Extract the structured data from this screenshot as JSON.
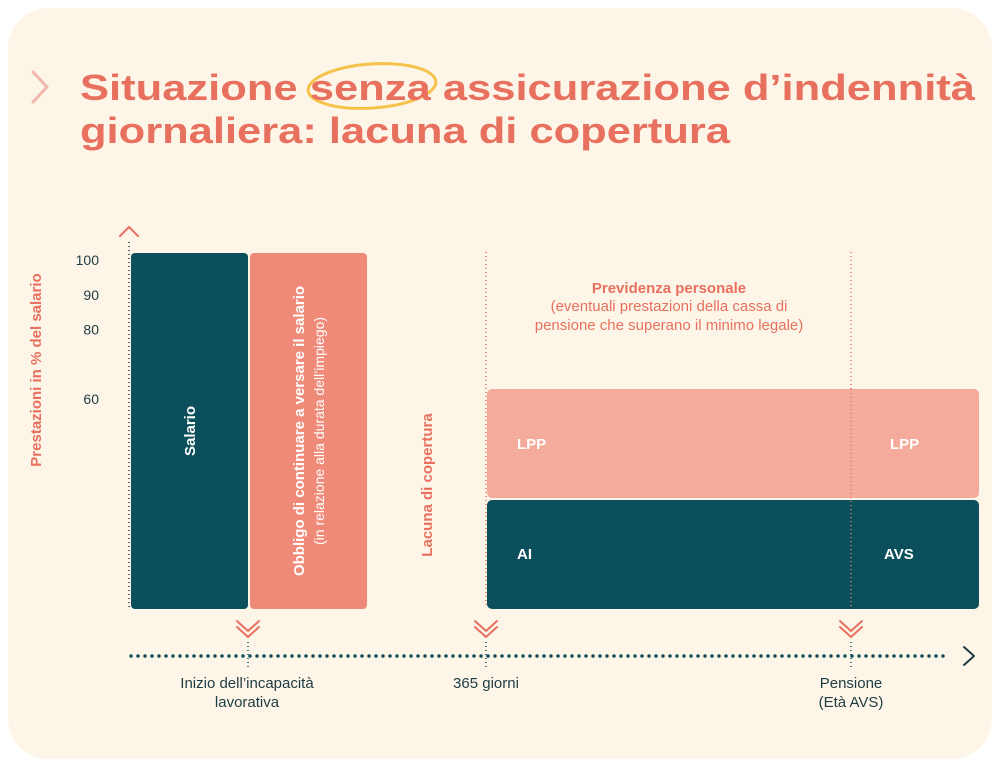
{
  "title": {
    "line1": "Situazione senza assicurazione d’indennità",
    "line2": "giornaliera: lacuna di copertura"
  },
  "y_axis": {
    "label": "Prestazioni in % del salario",
    "ticks": [
      100,
      90,
      80,
      60
    ]
  },
  "blocks": {
    "salary": "Salario",
    "obligation": {
      "title": "Obbligo di continuare a versare il salario",
      "note": "(in relazione alla durata dell’impiego)"
    },
    "gap": "Lacuna di copertura",
    "lpp_left": "LPP",
    "lpp_right": "LPP",
    "ai": "AI",
    "avs": "AVS"
  },
  "personal": {
    "title": "Previdenza personale",
    "lines": [
      "(eventuali prestazioni della cassa di",
      "pensione che superano il minimo legale)"
    ]
  },
  "timeline": [
    {
      "lines": [
        "Inizio dell’incapacità",
        "lavorativa"
      ]
    },
    {
      "lines": [
        "365 giorni"
      ]
    },
    {
      "lines": [
        "Pensione",
        "(Età AVS)"
      ]
    }
  ]
}
